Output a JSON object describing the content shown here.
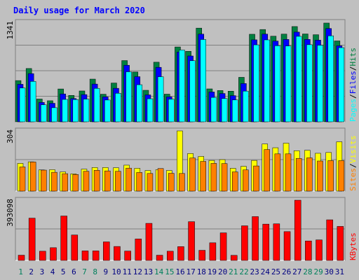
{
  "chart_data": [
    {
      "type": "bar",
      "panel": "hits",
      "title": "Daily usage for March 2020",
      "x": [
        1,
        2,
        3,
        4,
        5,
        6,
        7,
        8,
        9,
        10,
        11,
        12,
        13,
        14,
        15,
        16,
        17,
        18,
        19,
        20,
        21,
        22,
        23,
        24,
        25,
        26,
        27,
        28,
        29,
        30,
        31
      ],
      "weekend_days": [
        1,
        7,
        8,
        14,
        15,
        21,
        22,
        28,
        29
      ],
      "axis_max_label": "1341",
      "ylim": [
        0,
        1341
      ],
      "series": [
        {
          "name": "Hits",
          "color": "#008040",
          "values": [
            556,
            719,
            307,
            284,
            443,
            356,
            416,
            576,
            372,
            523,
            826,
            672,
            425,
            804,
            373,
            1010,
            951,
            1264,
            444,
            422,
            413,
            600,
            1181,
            1245,
            1155,
            1183,
            1285,
            1185,
            1175,
            1332,
            1091
          ]
        },
        {
          "name": "Files",
          "color": "#0000ff",
          "values": [
            506,
            650,
            261,
            250,
            376,
            314,
            367,
            509,
            336,
            452,
            763,
            609,
            363,
            735,
            336,
            942,
            888,
            1183,
            402,
            382,
            353,
            516,
            1106,
            1183,
            1089,
            1111,
            1210,
            1112,
            1102,
            1259,
            1025
          ]
        },
        {
          "name": "Pages",
          "color": "#00ffff",
          "values": [
            456,
            545,
            230,
            190,
            302,
            300,
            306,
            451,
            294,
            385,
            675,
            500,
            311,
            608,
            305,
            968,
            824,
            1110,
            329,
            314,
            295,
            414,
            1038,
            1105,
            1026,
            1023,
            1153,
            1040,
            1033,
            1160,
            1000
          ]
        }
      ]
    },
    {
      "type": "bar",
      "panel": "visits",
      "axis_max_label": "304",
      "ylim": [
        0,
        304
      ],
      "series": [
        {
          "name": "Visits",
          "color": "#ffff00",
          "values": [
            140,
            148,
            107,
            108,
            97,
            87,
            111,
            119,
            119,
            118,
            131,
            115,
            104,
            108,
            104,
            304,
            190,
            175,
            155,
            159,
            115,
            125,
            155,
            238,
            219,
            242,
            204,
            206,
            191,
            195,
            249
          ]
        },
        {
          "name": "Sites",
          "color": "#ff8000",
          "values": [
            122,
            147,
            106,
            95,
            88,
            84,
            100,
            105,
            102,
            100,
            116,
            94,
            89,
            114,
            90,
            89,
            167,
            150,
            140,
            139,
            97,
            107,
            127,
            210,
            188,
            188,
            165,
            168,
            152,
            154,
            154
          ]
        }
      ]
    },
    {
      "type": "bar",
      "panel": "kbytes",
      "axis_max_label": "393098",
      "ylim": [
        0,
        393098
      ],
      "series": [
        {
          "name": "KBytes",
          "color": "#ff0000",
          "values": [
            34000,
            276000,
            60000,
            83000,
            290000,
            166000,
            62000,
            62000,
            121000,
            91000,
            61000,
            140000,
            242000,
            34000,
            60000,
            90000,
            253000,
            66000,
            115000,
            180000,
            33000,
            226000,
            286000,
            237000,
            239000,
            188000,
            393098,
            127000,
            134000,
            265000,
            222000
          ]
        }
      ]
    }
  ]
}
